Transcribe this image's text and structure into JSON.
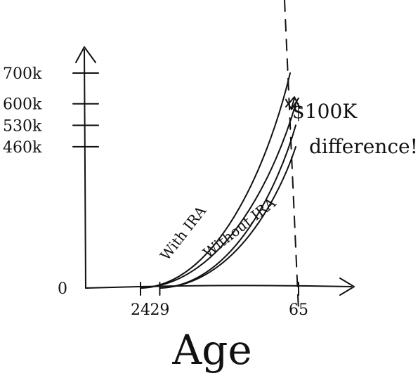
{
  "chart_data": {
    "type": "line",
    "title": "",
    "xlabel": "Age",
    "ylabel": "",
    "xlim": [
      18,
      75
    ],
    "ylim": [
      0,
      730000
    ],
    "x_ticks": [
      {
        "value": 24,
        "label": "24"
      },
      {
        "value": 29,
        "label": "29"
      },
      {
        "value": 65,
        "label": "65"
      }
    ],
    "y_ticks": [
      {
        "value": 0,
        "label": "0"
      },
      {
        "value": 460000,
        "label": "460k"
      },
      {
        "value": 530000,
        "label": "530k"
      },
      {
        "value": 600000,
        "label": "600k"
      },
      {
        "value": 700000,
        "label": "700k"
      }
    ],
    "series": [
      {
        "name": "With IRA",
        "start_age": 24,
        "end_age": 65,
        "start_value": 0,
        "end_value": 700000
      },
      {
        "name": "Without IRA",
        "start_age": 24,
        "end_age": 65,
        "start_value": 0,
        "end_value": 600000
      },
      {
        "name": "",
        "start_age": 29,
        "end_age": 65,
        "start_value": 0,
        "end_value": 530000
      },
      {
        "name": "",
        "start_age": 29,
        "end_age": 65,
        "start_value": 0,
        "end_value": 460000
      }
    ],
    "reference_line": {
      "x": 65,
      "style": "dashed"
    },
    "annotation": {
      "text_line1": "$100K",
      "text_line2": "difference!",
      "from": 700000,
      "to": 600000,
      "at_age": 65
    },
    "grid": false,
    "legend": "none"
  }
}
